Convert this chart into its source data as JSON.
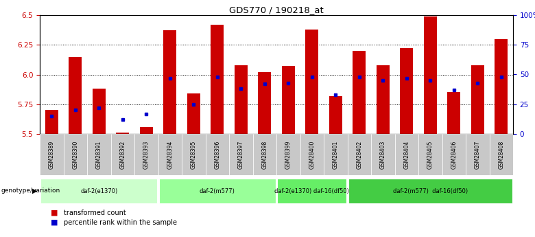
{
  "title": "GDS770 / 190218_at",
  "samples": [
    "GSM28389",
    "GSM28390",
    "GSM28391",
    "GSM28392",
    "GSM28393",
    "GSM28394",
    "GSM28395",
    "GSM28396",
    "GSM28397",
    "GSM28398",
    "GSM28399",
    "GSM28400",
    "GSM28401",
    "GSM28402",
    "GSM28403",
    "GSM28404",
    "GSM28405",
    "GSM28406",
    "GSM28407",
    "GSM28408"
  ],
  "transformed_count": [
    5.7,
    6.15,
    5.88,
    5.51,
    5.56,
    6.37,
    5.84,
    6.42,
    6.08,
    6.02,
    6.07,
    6.38,
    5.82,
    6.2,
    6.08,
    6.22,
    6.49,
    5.85,
    6.08,
    6.3
  ],
  "percentile_rank": [
    15,
    20,
    22,
    12,
    17,
    47,
    25,
    48,
    38,
    42,
    43,
    48,
    33,
    48,
    45,
    47,
    45,
    37,
    43,
    48
  ],
  "ylim": [
    5.5,
    6.5
  ],
  "yticks": [
    5.5,
    5.75,
    6.0,
    6.25,
    6.5
  ],
  "right_yticks": [
    0,
    25,
    50,
    75,
    100
  ],
  "right_ylabels": [
    "0",
    "25",
    "50",
    "75",
    "100%"
  ],
  "bar_color": "#cc0000",
  "marker_color": "#0000cc",
  "genotype_groups": [
    {
      "label": "daf-2(e1370)",
      "start": 0,
      "end": 5,
      "color": "#ccffcc"
    },
    {
      "label": "daf-2(m577)",
      "start": 5,
      "end": 10,
      "color": "#99ff99"
    },
    {
      "label": "daf-2(e1370) daf-16(df50)",
      "start": 10,
      "end": 13,
      "color": "#66ee66"
    },
    {
      "label": "daf-2(m577)  daf-16(df50)",
      "start": 13,
      "end": 20,
      "color": "#44cc44"
    }
  ],
  "legend_items": [
    {
      "label": "transformed count",
      "color": "#cc0000"
    },
    {
      "label": "percentile rank within the sample",
      "color": "#0000cc"
    }
  ],
  "genotype_label": "genotype/variation"
}
